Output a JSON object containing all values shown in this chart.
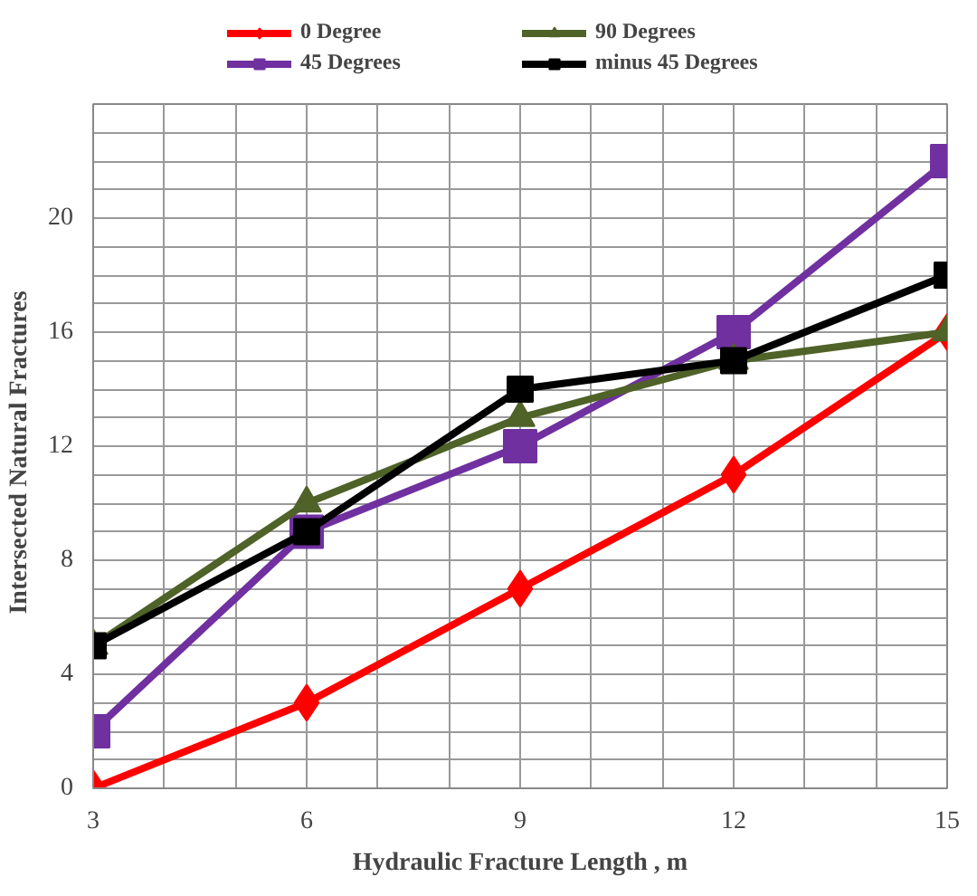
{
  "chart_data": {
    "type": "line",
    "xlabel": "Hydraulic Fracture Length , m",
    "ylabel": "Intersected  Natural  Fractures",
    "x": [
      3,
      6,
      9,
      12,
      15
    ],
    "series": [
      {
        "name": "0 Degree",
        "color": "#ff0000",
        "marker": "diamond",
        "values": [
          0,
          3,
          7,
          11,
          16
        ]
      },
      {
        "name": "45 Degrees",
        "color": "#7030a0",
        "marker": "square",
        "values": [
          2,
          9,
          12,
          16,
          22
        ]
      },
      {
        "name": "90 Degrees",
        "color": "#4f6228",
        "marker": "triangle",
        "values": [
          5,
          10,
          13,
          15,
          16
        ]
      },
      {
        "name": "minus 45 Degrees",
        "color": "#000000",
        "marker": "square",
        "values": [
          5,
          9,
          14,
          15,
          18
        ]
      }
    ],
    "xlim": [
      3,
      15
    ],
    "ylim": [
      0,
      24
    ],
    "xticks": [
      3,
      {
        "value": 4,
        "label": null
      },
      {
        "value": 5,
        "label": null
      },
      6,
      {
        "value": 7,
        "label": null
      },
      {
        "value": 8,
        "label": null
      },
      9,
      {
        "value": 10,
        "label": null
      },
      {
        "value": 11,
        "label": null
      },
      12,
      {
        "value": 13,
        "label": null
      },
      {
        "value": 14,
        "label": null
      },
      15
    ],
    "yticks": [
      0,
      {
        "value": 1,
        "label": null
      },
      {
        "value": 2,
        "label": null
      },
      {
        "value": 3,
        "label": null
      },
      4,
      {
        "value": 5,
        "label": null
      },
      {
        "value": 6,
        "label": null
      },
      {
        "value": 7,
        "label": null
      },
      8,
      {
        "value": 9,
        "label": null
      },
      {
        "value": 10,
        "label": null
      },
      {
        "value": 11,
        "label": null
      },
      12,
      {
        "value": 13,
        "label": null
      },
      {
        "value": 14,
        "label": null
      },
      {
        "value": 15,
        "label": null
      },
      16,
      {
        "value": 17,
        "label": null
      },
      {
        "value": 18,
        "label": null
      },
      {
        "value": 19,
        "label": null
      },
      20,
      {
        "value": 21,
        "label": null
      },
      {
        "value": 22,
        "label": null
      },
      {
        "value": 23,
        "label": null
      },
      {
        "value": 24,
        "label": null
      }
    ],
    "grid": true,
    "legend": "top",
    "line_style": "solid"
  }
}
